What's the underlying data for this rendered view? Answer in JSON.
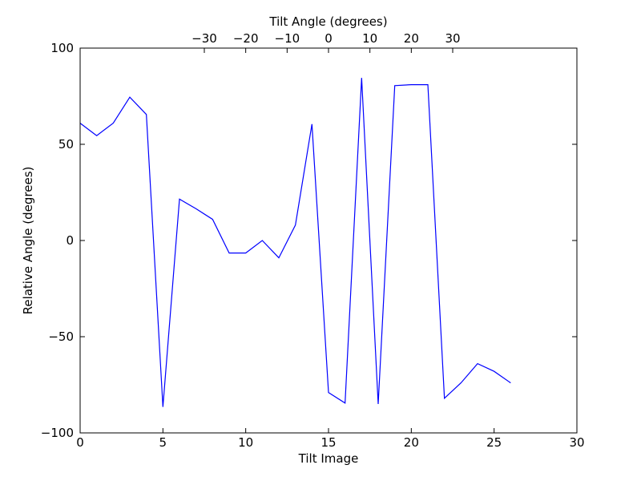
{
  "chart_data": {
    "type": "line",
    "xlabel": "Tilt Image",
    "ylabel": "Relative Angle (degrees)",
    "top_xlabel": "Tilt Angle (degrees)",
    "xlim": [
      0,
      30
    ],
    "ylim": [
      -100,
      100
    ],
    "x_ticks": [
      0,
      5,
      10,
      15,
      20,
      25,
      30
    ],
    "x_tick_labels": [
      "0",
      "5",
      "10",
      "15",
      "20",
      "25",
      "30"
    ],
    "y_ticks": [
      -100,
      -50,
      0,
      50,
      100
    ],
    "y_tick_labels": [
      "−100",
      "−50",
      "0",
      "50",
      "100"
    ],
    "top_x_ticks": [
      -30,
      -20,
      -10,
      0,
      10,
      20,
      30
    ],
    "top_x_tick_labels": [
      "−30",
      "−20",
      "−10",
      "0",
      "10",
      "20",
      "30"
    ],
    "top_x_offset": 15.0,
    "top_x_scale": 0.25,
    "grid": false,
    "color": "#0000ff",
    "series": [
      {
        "x": [
          0,
          1,
          2,
          3,
          4,
          5,
          6,
          7,
          8,
          9,
          10,
          11,
          12,
          13,
          14,
          15,
          16,
          17,
          18,
          19,
          20,
          21,
          22,
          23,
          24,
          25,
          26
        ],
        "y": [
          61,
          54.5,
          61,
          74.5,
          65.5,
          -86.5,
          21.5,
          16.5,
          11,
          -6.5,
          -6.5,
          0,
          -9,
          8,
          60.5,
          -79,
          -84.5,
          84.5,
          -85,
          80.5,
          81,
          81,
          -82,
          -74,
          -64,
          -68,
          -74
        ]
      }
    ]
  }
}
